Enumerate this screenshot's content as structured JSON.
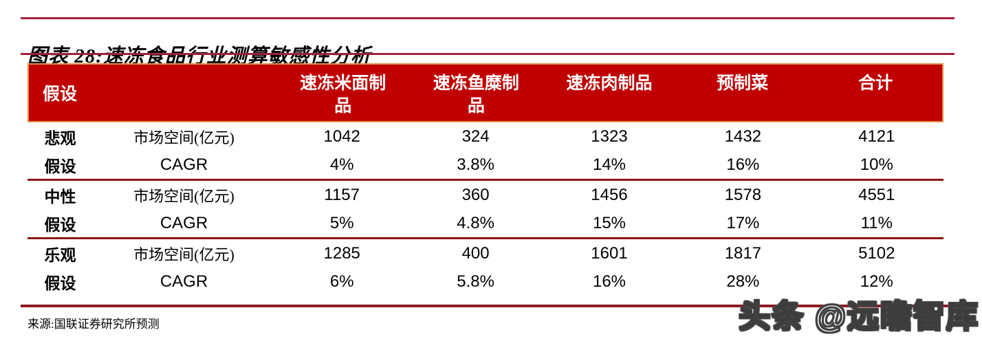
{
  "figure": {
    "title": "图表 28:速冻食品行业测算敏感性分析",
    "source": "来源:国联证券研究所预测"
  },
  "watermark": "头条 @远瞻智库",
  "colors": {
    "header_bg": "#C00000",
    "header_border": "#E2923F",
    "header_text": "#FFFFFF",
    "title_rule": "#A32038",
    "table_rule": "#8C1815",
    "body_text": "#000000"
  },
  "table": {
    "header": {
      "assumption_label": "假设",
      "columns": [
        "速冻米面制品",
        "速冻鱼糜制品",
        "速冻肉制品",
        "预制菜",
        "合计"
      ]
    },
    "groups": [
      {
        "label_top": "悲观",
        "label_bottom": "假设",
        "rows": [
          {
            "metric": "市场空间(亿元)",
            "values": [
              "1042",
              "324",
              "1323",
              "1432",
              "4121"
            ]
          },
          {
            "metric": "CAGR",
            "values": [
              "4%",
              "3.8%",
              "14%",
              "16%",
              "10%"
            ]
          }
        ]
      },
      {
        "label_top": "中性",
        "label_bottom": "假设",
        "rows": [
          {
            "metric": "市场空间(亿元)",
            "values": [
              "1157",
              "360",
              "1456",
              "1578",
              "4551"
            ]
          },
          {
            "metric": "CAGR",
            "values": [
              "5%",
              "4.8%",
              "15%",
              "17%",
              "11%"
            ]
          }
        ]
      },
      {
        "label_top": "乐观",
        "label_bottom": "假设",
        "rows": [
          {
            "metric": "市场空间(亿元)",
            "values": [
              "1285",
              "400",
              "1601",
              "1817",
              "5102"
            ]
          },
          {
            "metric": "CAGR",
            "values": [
              "6%",
              "5.8%",
              "16%",
              "28%",
              "12%"
            ]
          }
        ]
      }
    ]
  }
}
